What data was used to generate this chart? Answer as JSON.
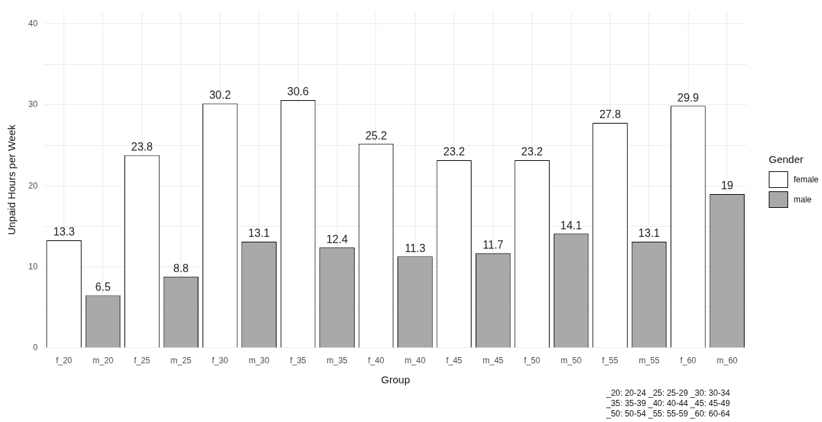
{
  "chart_data": {
    "type": "bar",
    "xlabel": "Group",
    "ylabel": "Unpaid Hours per Week",
    "legend_title": "Gender",
    "categories": [
      "f_20",
      "m_20",
      "f_25",
      "m_25",
      "f_30",
      "m_30",
      "f_35",
      "m_35",
      "f_40",
      "m_40",
      "f_45",
      "m_45",
      "f_50",
      "m_50",
      "f_55",
      "m_55",
      "f_60",
      "m_60"
    ],
    "series": [
      {
        "name": "female",
        "color": "#ffffff",
        "values": [
          13.3,
          null,
          23.8,
          null,
          30.2,
          null,
          30.6,
          null,
          25.2,
          null,
          23.2,
          null,
          23.2,
          null,
          27.8,
          null,
          29.9,
          null
        ]
      },
      {
        "name": "male",
        "color": "#a9a9a9",
        "values": [
          null,
          6.5,
          null,
          8.8,
          null,
          13.1,
          null,
          12.4,
          null,
          11.3,
          null,
          11.7,
          null,
          14.1,
          null,
          13.1,
          null,
          19
        ]
      }
    ],
    "ylim": [
      0,
      41.5
    ],
    "yticks": [
      0,
      {
        "value": 5,
        "label": null
      },
      10,
      {
        "value": 15,
        "label": null
      },
      20,
      {
        "value": 25,
        "label": null
      },
      30,
      {
        "value": 35,
        "label": null
      },
      40
    ],
    "grid": true,
    "legend": "right",
    "data_labels": true,
    "annotations": [
      "_20: 20-24 _25: 25-29 _30: 30-34",
      "_35: 35-39 _40: 40-44 _45: 45-49",
      "_50: 50-54 _55: 55-59 _60: 60-64"
    ]
  }
}
